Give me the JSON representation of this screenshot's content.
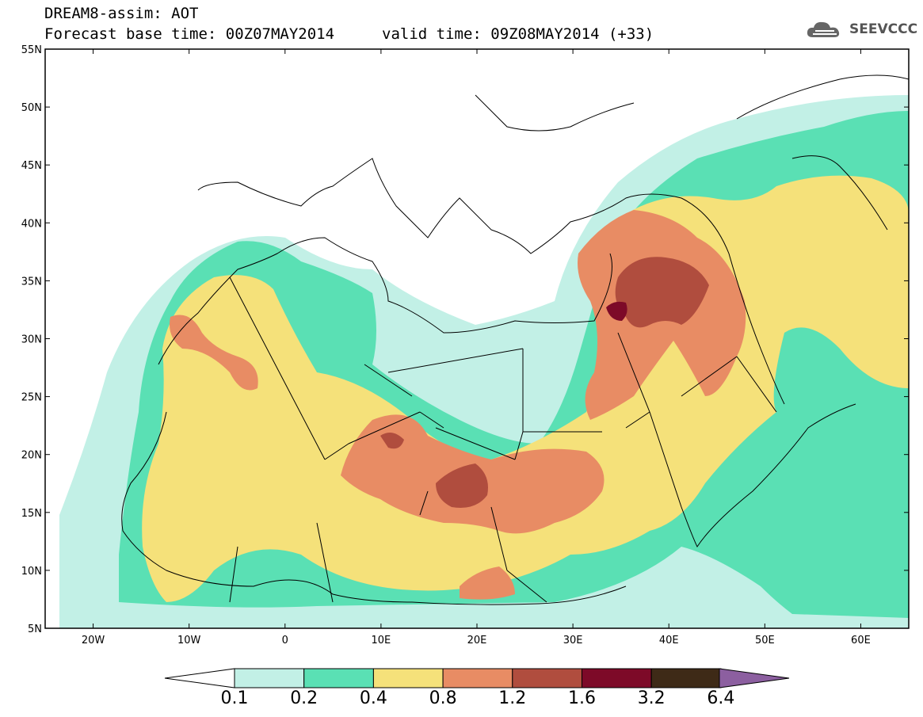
{
  "header": {
    "title": "DREAM8-assim: AOT",
    "base_time": "Forecast base time: 00Z07MAY2014",
    "valid_time": "valid time: 09Z08MAY2014 (+33)",
    "logo_text": "SEEVCCC"
  },
  "axes": {
    "lat_labels": [
      "55N",
      "50N",
      "45N",
      "40N",
      "35N",
      "30N",
      "25N",
      "20N",
      "15N",
      "10N",
      "5N"
    ],
    "lon_labels": [
      "20W",
      "10W",
      "0",
      "10E",
      "20E",
      "30E",
      "40E",
      "50E",
      "60E"
    ]
  },
  "colorbar": {
    "thresholds": [
      "0.1",
      "0.2",
      "0.4",
      "0.8",
      "1.2",
      "1.6",
      "3.2",
      "6.4"
    ],
    "colors": [
      "#c2f0e6",
      "#5ae0b4",
      "#f5e17a",
      "#e88c64",
      "#b04d3e",
      "#7d0a28",
      "#3e2a17",
      "#8c5fa0"
    ]
  },
  "chart_data": {
    "type": "heatmap",
    "title": "DREAM8-assim: AOT",
    "subtitle": "Forecast base time: 00Z07MAY2014   valid time: 09Z08MAY2014 (+33)",
    "lon_range": [
      -25,
      65
    ],
    "lat_range": [
      5,
      55
    ],
    "levels": [
      0.1,
      0.2,
      0.4,
      0.8,
      1.2,
      1.6,
      3.2,
      6.4
    ]
  }
}
